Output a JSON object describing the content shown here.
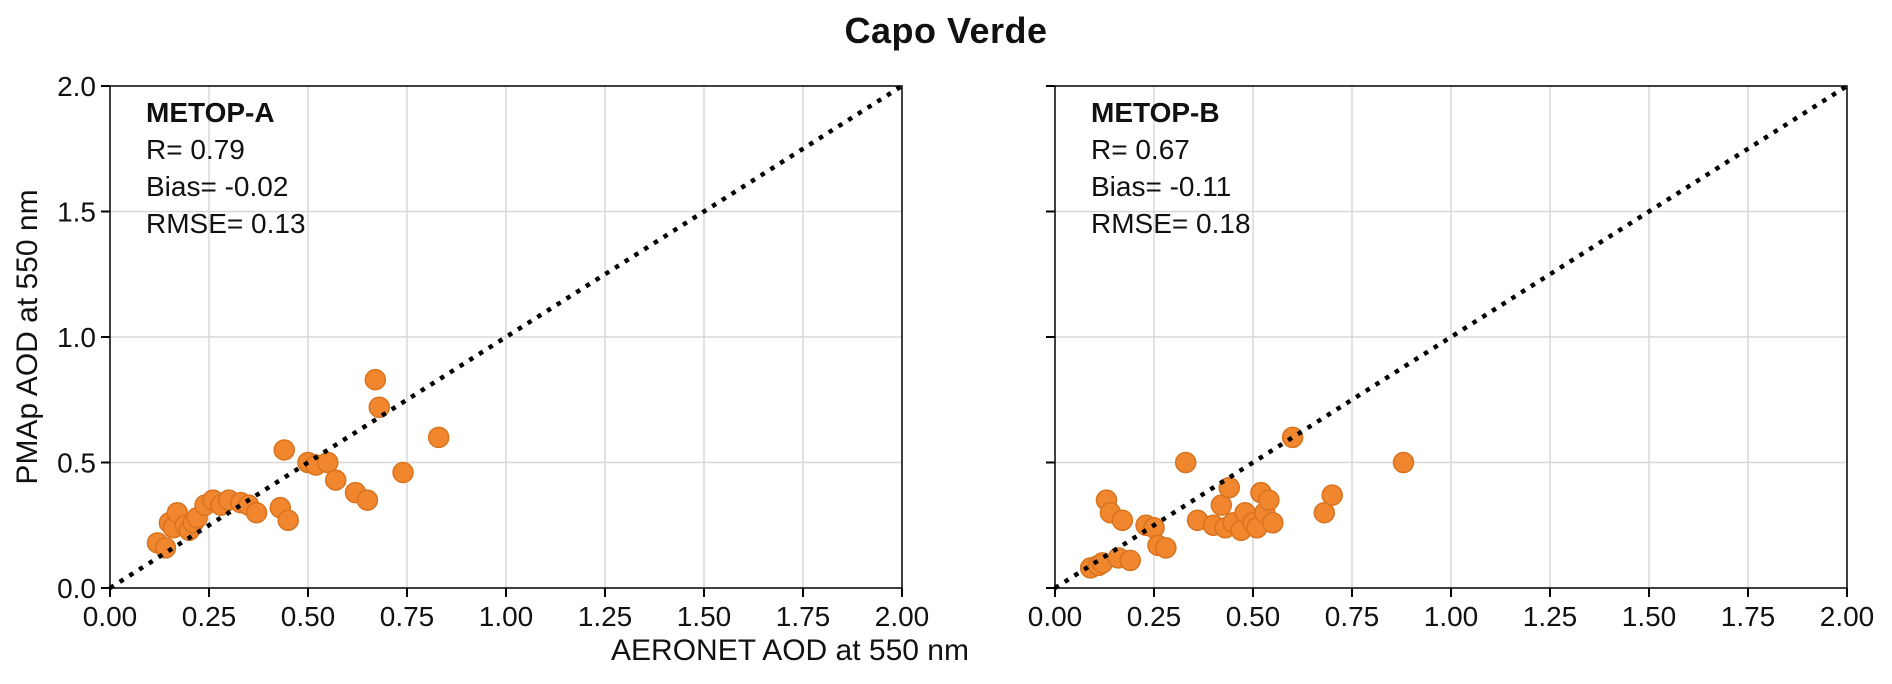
{
  "title": "Capo Verde",
  "axes": {
    "xlabel": "AERONET AOD at 550 nm",
    "ylabel": "PMAp AOD at 550 nm"
  },
  "style": {
    "point_color": "#f0862e",
    "point_edge": "#d8731f",
    "grid_color": "#d8d8d8",
    "line_color": "#000000"
  },
  "chart_data": [
    {
      "type": "scatter",
      "name": "METOP-A",
      "stats": {
        "r": "R= 0.79",
        "bias": "Bias= -0.02",
        "rmse": "RMSE= 0.13"
      },
      "xlim": [
        0,
        2
      ],
      "ylim": [
        0,
        2
      ],
      "xticks": {
        "values": [
          0,
          0.25,
          0.5,
          0.75,
          1.0,
          1.25,
          1.5,
          1.75,
          2.0
        ],
        "labels": [
          "0.00",
          "0.25",
          "0.50",
          "0.75",
          "1.00",
          "1.25",
          "1.50",
          "1.75",
          "2.00"
        ]
      },
      "yticks": {
        "values": [
          0,
          0.5,
          1.0,
          1.5,
          2.0
        ],
        "labels": [
          "0.0",
          "0.5",
          "1.0",
          "1.5",
          "2.0"
        ]
      },
      "grid": true,
      "legend": "none",
      "identity_line": true,
      "points": [
        [
          0.12,
          0.18
        ],
        [
          0.14,
          0.16
        ],
        [
          0.15,
          0.26
        ],
        [
          0.16,
          0.24
        ],
        [
          0.17,
          0.3
        ],
        [
          0.19,
          0.25
        ],
        [
          0.2,
          0.23
        ],
        [
          0.21,
          0.26
        ],
        [
          0.22,
          0.28
        ],
        [
          0.24,
          0.33
        ],
        [
          0.26,
          0.35
        ],
        [
          0.28,
          0.33
        ],
        [
          0.3,
          0.35
        ],
        [
          0.33,
          0.34
        ],
        [
          0.35,
          0.33
        ],
        [
          0.37,
          0.3
        ],
        [
          0.43,
          0.32
        ],
        [
          0.44,
          0.55
        ],
        [
          0.45,
          0.27
        ],
        [
          0.5,
          0.5
        ],
        [
          0.52,
          0.49
        ],
        [
          0.55,
          0.5
        ],
        [
          0.57,
          0.43
        ],
        [
          0.62,
          0.38
        ],
        [
          0.65,
          0.35
        ],
        [
          0.67,
          0.83
        ],
        [
          0.68,
          0.72
        ],
        [
          0.74,
          0.46
        ],
        [
          0.83,
          0.6
        ]
      ]
    },
    {
      "type": "scatter",
      "name": "METOP-B",
      "stats": {
        "r": "R= 0.67",
        "bias": "Bias= -0.11",
        "rmse": "RMSE= 0.18"
      },
      "xlim": [
        0,
        2
      ],
      "ylim": [
        0,
        2
      ],
      "xticks": {
        "values": [
          0,
          0.25,
          0.5,
          0.75,
          1.0,
          1.25,
          1.5,
          1.75,
          2.0
        ],
        "labels": [
          "0.00",
          "0.25",
          "0.50",
          "0.75",
          "1.00",
          "1.25",
          "1.50",
          "1.75",
          "2.00"
        ]
      },
      "yticks": {
        "values": [
          0,
          0.5,
          1.0,
          1.5,
          2.0
        ],
        "labels": [
          "0.0",
          "0.5",
          "1.0",
          "1.5",
          "2.0"
        ]
      },
      "grid": true,
      "legend": "none",
      "identity_line": true,
      "points": [
        [
          0.09,
          0.08
        ],
        [
          0.11,
          0.09
        ],
        [
          0.12,
          0.1
        ],
        [
          0.13,
          0.35
        ],
        [
          0.14,
          0.3
        ],
        [
          0.16,
          0.12
        ],
        [
          0.17,
          0.27
        ],
        [
          0.19,
          0.11
        ],
        [
          0.23,
          0.25
        ],
        [
          0.25,
          0.24
        ],
        [
          0.26,
          0.17
        ],
        [
          0.28,
          0.16
        ],
        [
          0.33,
          0.5
        ],
        [
          0.36,
          0.27
        ],
        [
          0.4,
          0.25
        ],
        [
          0.42,
          0.33
        ],
        [
          0.43,
          0.24
        ],
        [
          0.44,
          0.4
        ],
        [
          0.45,
          0.26
        ],
        [
          0.47,
          0.23
        ],
        [
          0.48,
          0.3
        ],
        [
          0.5,
          0.26
        ],
        [
          0.51,
          0.24
        ],
        [
          0.52,
          0.38
        ],
        [
          0.53,
          0.3
        ],
        [
          0.54,
          0.35
        ],
        [
          0.55,
          0.26
        ],
        [
          0.6,
          0.6
        ],
        [
          0.68,
          0.3
        ],
        [
          0.7,
          0.37
        ],
        [
          0.88,
          0.5
        ]
      ]
    }
  ]
}
